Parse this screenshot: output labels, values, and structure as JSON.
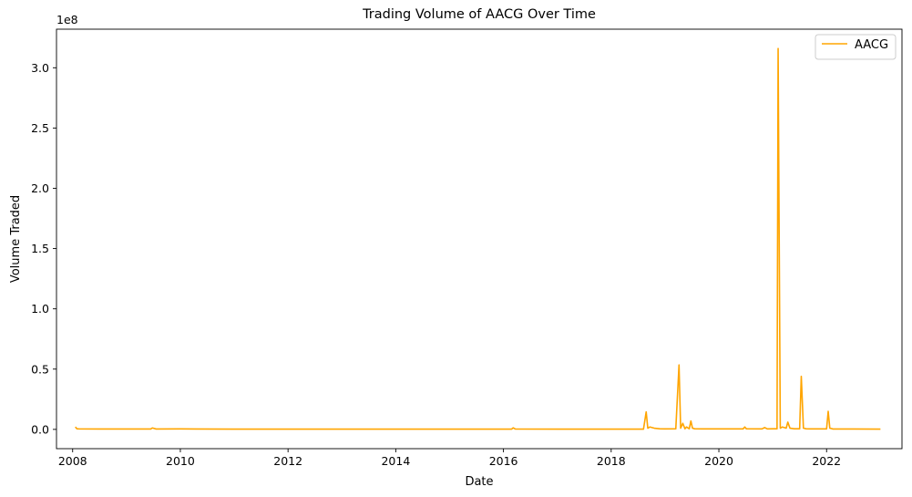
{
  "chart_data": {
    "type": "line",
    "title": "Trading Volume of AACG Over Time",
    "xlabel": "Date",
    "ylabel": "Volume Traded",
    "y_offset_label": "1e8",
    "xlim": [
      2007.7,
      2023.4
    ],
    "ylim": [
      -0.16,
      3.32
    ],
    "x_ticks": [
      2008,
      2010,
      2012,
      2014,
      2016,
      2018,
      2020,
      2022
    ],
    "y_ticks": [
      0.0,
      0.5,
      1.0,
      1.5,
      2.0,
      2.5,
      3.0
    ],
    "y_tick_labels": [
      "0.0",
      "0.5",
      "1.0",
      "1.5",
      "2.0",
      "2.5",
      "3.0"
    ],
    "legend": {
      "placement": "top-right"
    },
    "series": [
      {
        "name": "AACG",
        "color": "#ffa500",
        "x": [
          2008.05,
          2008.08,
          2008.12,
          2008.5,
          2009.0,
          2009.45,
          2009.48,
          2009.55,
          2010.0,
          2010.3,
          2011.0,
          2012.0,
          2013.0,
          2014.0,
          2015.0,
          2016.15,
          2016.18,
          2016.22,
          2017.0,
          2018.0,
          2018.6,
          2018.65,
          2018.68,
          2018.72,
          2018.8,
          2018.9,
          2019.0,
          2019.2,
          2019.26,
          2019.29,
          2019.33,
          2019.37,
          2019.4,
          2019.45,
          2019.48,
          2019.51,
          2019.55,
          2019.7,
          2020.0,
          2020.45,
          2020.48,
          2020.51,
          2020.8,
          2020.85,
          2020.9,
          2021.0,
          2021.08,
          2021.1,
          2021.14,
          2021.18,
          2021.25,
          2021.28,
          2021.32,
          2021.4,
          2021.5,
          2021.53,
          2021.57,
          2021.62,
          2021.7,
          2022.0,
          2022.03,
          2022.06,
          2022.12,
          2022.5,
          2023.0
        ],
        "y": [
          0.02,
          0.005,
          0.004,
          0.003,
          0.003,
          0.003,
          0.012,
          0.003,
          0.004,
          0.003,
          0.002,
          0.002,
          0.002,
          0.002,
          0.002,
          0.002,
          0.013,
          0.003,
          0.002,
          0.002,
          0.002,
          0.145,
          0.01,
          0.02,
          0.01,
          0.005,
          0.004,
          0.005,
          0.535,
          0.01,
          0.05,
          0.005,
          0.02,
          0.005,
          0.07,
          0.01,
          0.005,
          0.004,
          0.004,
          0.004,
          0.02,
          0.005,
          0.004,
          0.015,
          0.004,
          0.005,
          0.005,
          3.16,
          0.01,
          0.02,
          0.01,
          0.06,
          0.01,
          0.005,
          0.005,
          0.44,
          0.01,
          0.005,
          0.004,
          0.004,
          0.15,
          0.01,
          0.003,
          0.003,
          0.002
        ]
      }
    ]
  }
}
